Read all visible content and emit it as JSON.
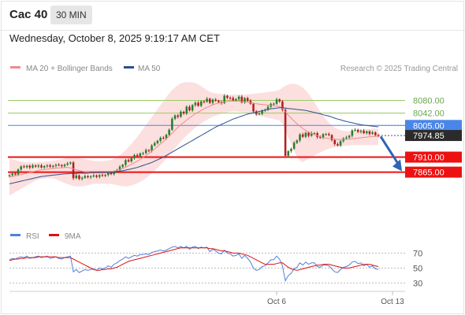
{
  "header": {
    "symbol": "Cac 40",
    "timeframe": "30 MIN",
    "datetime": "Wednesday, October 8, 2025 9:19:17 AM CET"
  },
  "colors": {
    "ma20": "#f08a8a",
    "ma50": "#2c4f8c",
    "bollinger_fill": "#fbd9d9",
    "candle_up": "#2a7d2e",
    "candle_down": "#b31f1f",
    "green_level": "#9ccc65",
    "blue_level": "#4a86e8",
    "red_level": "#ee1111",
    "rsi": "#4f7fdb",
    "rsi_ma": "#dd1111",
    "arrow": "#2f64b5"
  },
  "chart_data": [
    {
      "type": "candlestick",
      "legend": {
        "placement": "top-left",
        "items": [
          "MA 20 + Bollinger Bands",
          "MA 50"
        ]
      },
      "watermark": "Research © 2025 Trading Central",
      "ylim": [
        7720,
        8145
      ],
      "grid": false,
      "x_tick_labels": [
        "Oct 6",
        "Oct 13"
      ],
      "last_price": {
        "value": 7974.85,
        "label": "7974.85"
      },
      "levels": [
        {
          "value": 8080.0,
          "label": "8080.00",
          "kind": "resistance",
          "color": "#9ccc65"
        },
        {
          "value": 8042.0,
          "label": "8042.00",
          "kind": "resistance",
          "color": "#9ccc65"
        },
        {
          "value": 8005.0,
          "label": "8005.00",
          "kind": "pivot",
          "color": "#4a86e8"
        },
        {
          "value": 7910.0,
          "label": "7910.00",
          "kind": "support",
          "color": "#ee1111"
        },
        {
          "value": 7865.0,
          "label": "7865.00",
          "kind": "support",
          "color": "#ee1111"
        }
      ],
      "forecast_arrow": {
        "from": 7972,
        "to": 7868,
        "direction": "down"
      },
      "close": [
        7856,
        7861,
        7858,
        7873,
        7882,
        7880,
        7884,
        7879,
        7885,
        7882,
        7885,
        7879,
        7883,
        7885,
        7881,
        7884,
        7887,
        7886,
        7883,
        7887,
        7891,
        7894,
        7847,
        7855,
        7845,
        7848,
        7853,
        7850,
        7852,
        7855,
        7851,
        7856,
        7854,
        7857,
        7863,
        7859,
        7867,
        7871,
        7881,
        7887,
        7901,
        7897,
        7907,
        7916,
        7913,
        7921,
        7922,
        7931,
        7929,
        7945,
        7952,
        7959,
        7968,
        7966,
        7977,
        7992,
        8025,
        8035,
        8031,
        8046,
        8041,
        8061,
        8050,
        8066,
        8073,
        8064,
        8077,
        8076,
        8085,
        8073,
        8082,
        8079,
        8075,
        8072,
        8094,
        8088,
        8087,
        8080,
        8084,
        8091,
        8074,
        8087,
        8079,
        8070,
        8047,
        8039,
        8040,
        8050,
        8052,
        8061,
        8070,
        8070,
        8083,
        8077,
        8052,
        7914,
        7928,
        7935,
        7953,
        7960,
        7978,
        7971,
        7983,
        7974,
        7982,
        7982,
        7970,
        7968,
        7979,
        7979,
        7976,
        7961,
        7949,
        7945,
        7958,
        7966,
        7969,
        7974,
        7990,
        7992,
        7986,
        7989,
        7982,
        7987,
        7980,
        7984,
        7976,
        7974.85
      ],
      "ma20": [
        7850,
        7852,
        7854,
        7856,
        7858,
        7860,
        7862,
        7864,
        7866,
        7868,
        7870,
        7872,
        7873,
        7874,
        7875,
        7876,
        7877,
        7878,
        7878,
        7879,
        7879,
        7878,
        7875,
        7872,
        7870,
        7868,
        7866,
        7865,
        7864,
        7864,
        7864,
        7864,
        7864,
        7864,
        7865,
        7866,
        7868,
        7870,
        7873,
        7876,
        7880,
        7884,
        7888,
        7893,
        7898,
        7903,
        7909,
        7915,
        7921,
        7928,
        7935,
        7942,
        7950,
        7957,
        7965,
        7973,
        7982,
        7991,
        7999,
        8007,
        8014,
        8021,
        8028,
        8034,
        8040,
        8045,
        8050,
        8055,
        8059,
        8063,
        8067,
        8070,
        8072,
        8074,
        8076,
        8077,
        8078,
        8078,
        8078,
        8078,
        8077,
        8076,
        8075,
        8074,
        8072,
        8070,
        8069,
        8068,
        8067,
        8066,
        8065,
        8064,
        8063,
        8062,
        8056,
        8046,
        8036,
        8027,
        8018,
        8010,
        8003,
        7996,
        7990,
        7985,
        7981,
        7977,
        7974,
        7971,
        7969,
        7967,
        7966,
        7965,
        7964,
        7963,
        7963,
        7963,
        7963,
        7964,
        7965,
        7966,
        7967,
        7968,
        7969,
        7970,
        7971,
        7972,
        7972,
        7973
      ],
      "bb_upper": [
        7905,
        7903,
        7901,
        7899,
        7897,
        7896,
        7895,
        7894,
        7894,
        7894,
        7894,
        7895,
        7896,
        7897,
        7898,
        7899,
        7900,
        7902,
        7904,
        7906,
        7908,
        7910,
        7912,
        7910,
        7908,
        7906,
        7904,
        7902,
        7900,
        7899,
        7898,
        7898,
        7898,
        7899,
        7900,
        7902,
        7905,
        7910,
        7916,
        7923,
        7931,
        7940,
        7950,
        7960,
        7971,
        7982,
        7994,
        8006,
        8018,
        8030,
        8042,
        8054,
        8066,
        8078,
        8090,
        8101,
        8111,
        8119,
        8126,
        8131,
        8134,
        8135,
        8135,
        8134,
        8132,
        8128,
        8123,
        8117,
        8111,
        8106,
        8103,
        8101,
        8100,
        8099,
        8098,
        8097,
        8097,
        8097,
        8097,
        8097,
        8097,
        8097,
        8098,
        8099,
        8100,
        8101,
        8102,
        8103,
        8104,
        8105,
        8106,
        8107,
        8109,
        8112,
        8118,
        8124,
        8128,
        8130,
        8130,
        8128,
        8124,
        8118,
        8110,
        8100,
        8088,
        8075,
        8060,
        8046,
        8034,
        8023,
        8013,
        8005,
        7999,
        7994,
        7991,
        7989,
        7988,
        7988,
        7989,
        7990,
        7991,
        7992,
        7993,
        7994,
        7994,
        7995,
        7995,
        7995
      ],
      "bb_lower": [
        7795,
        7800,
        7805,
        7810,
        7815,
        7820,
        7825,
        7830,
        7835,
        7840,
        7843,
        7845,
        7846,
        7847,
        7847,
        7846,
        7844,
        7840,
        7836,
        7832,
        7829,
        7826,
        7823,
        7822,
        7822,
        7823,
        7824,
        7826,
        7828,
        7830,
        7830,
        7830,
        7830,
        7830,
        7830,
        7829,
        7828,
        7826,
        7824,
        7823,
        7822,
        7823,
        7825,
        7828,
        7832,
        7836,
        7841,
        7847,
        7854,
        7862,
        7870,
        7878,
        7887,
        7896,
        7906,
        7916,
        7927,
        7937,
        7947,
        7957,
        7966,
        7975,
        7983,
        7991,
        7998,
        8005,
        8011,
        8017,
        8022,
        8027,
        8031,
        8034,
        8037,
        8040,
        8042,
        8044,
        8046,
        8047,
        8047,
        8046,
        8045,
        8044,
        8042,
        8040,
        8038,
        8036,
        8034,
        8032,
        8030,
        8028,
        8026,
        8024,
        8022,
        8020,
        8010,
        7990,
        7970,
        7950,
        7930,
        7912,
        7900,
        7895,
        7900,
        7905,
        7910,
        7915,
        7920,
        7924,
        7928,
        7932,
        7935,
        7938,
        7940,
        7941,
        7942,
        7943,
        7944,
        7945,
        7946,
        7946,
        7946,
        7946,
        7946,
        7946,
        7946,
        7946,
        7946,
        7946
      ],
      "ma50": [
        7830,
        7832,
        7834,
        7836,
        7838,
        7840,
        7842,
        7844,
        7846,
        7848,
        7850,
        7852,
        7853,
        7854,
        7855,
        7856,
        7857,
        7858,
        7859,
        7860,
        7860,
        7861,
        7861,
        7861,
        7862,
        7862,
        7862,
        7862,
        7863,
        7863,
        7863,
        7864,
        7864,
        7864,
        7865,
        7865,
        7866,
        7867,
        7868,
        7869,
        7871,
        7873,
        7875,
        7877,
        7879,
        7882,
        7885,
        7888,
        7891,
        7894,
        7898,
        7902,
        7906,
        7910,
        7915,
        7920,
        7925,
        7930,
        7935,
        7940,
        7945,
        7950,
        7955,
        7960,
        7965,
        7970,
        7975,
        7980,
        7985,
        7990,
        7995,
        8000,
        8004,
        8008,
        8012,
        8016,
        8020,
        8024,
        8027,
        8030,
        8033,
        8036,
        8039,
        8041,
        8043,
        8045,
        8047,
        8049,
        8051,
        8053,
        8055,
        8056,
        8057,
        8058,
        8058,
        8057,
        8056,
        8055,
        8054,
        8053,
        8052,
        8051,
        8050,
        8048,
        8046,
        8044,
        8042,
        8040,
        8037,
        8035,
        8033,
        8030,
        8027,
        8024,
        8022,
        8019,
        8017,
        8015,
        8013,
        8011,
        8009,
        8007,
        8006,
        8005,
        8004,
        8003,
        8002,
        8001
      ]
    },
    {
      "type": "line",
      "legend": {
        "placement": "top-left",
        "items": [
          "RSI",
          "9MA"
        ]
      },
      "ylim": [
        22,
        82
      ],
      "y_tick_labels": [
        "70",
        "50",
        "30"
      ],
      "reference_lines": [
        70,
        50,
        30
      ],
      "series": [
        {
          "name": "RSI",
          "values": [
            61,
            63,
            62,
            64,
            65,
            64,
            66,
            63,
            64,
            65,
            66,
            64,
            65,
            66,
            63,
            64,
            65,
            63,
            62,
            64,
            65,
            66,
            45,
            48,
            44,
            46,
            48,
            47,
            48,
            49,
            47,
            50,
            49,
            50,
            53,
            51,
            55,
            57,
            60,
            62,
            65,
            63,
            65,
            67,
            66,
            68,
            68,
            69,
            68,
            71,
            72,
            73,
            74,
            73,
            74,
            76,
            78,
            79,
            77,
            79,
            77,
            79,
            75,
            78,
            79,
            76,
            78,
            77,
            78,
            72,
            75,
            73,
            70,
            69,
            74,
            70,
            69,
            66,
            67,
            69,
            63,
            67,
            63,
            58,
            50,
            47,
            48,
            52,
            53,
            57,
            61,
            61,
            66,
            62,
            53,
            33,
            40,
            43,
            49,
            51,
            57,
            54,
            58,
            55,
            57,
            57,
            52,
            51,
            54,
            54,
            53,
            49,
            45,
            44,
            48,
            51,
            52,
            54,
            58,
            59,
            56,
            57,
            53,
            55,
            51,
            53,
            49,
            48
          ]
        },
        {
          "name": "9MA",
          "values": [
            60,
            61,
            62,
            62,
            63,
            63,
            64,
            64,
            64,
            64,
            65,
            65,
            65,
            65,
            65,
            65,
            65,
            64,
            64,
            64,
            64,
            64,
            62,
            60,
            58,
            56,
            54,
            52,
            50,
            48,
            47,
            47,
            48,
            48,
            49,
            49,
            50,
            51,
            53,
            55,
            57,
            59,
            60,
            61,
            62,
            63,
            64,
            65,
            66,
            67,
            68,
            69,
            70,
            71,
            72,
            73,
            74,
            75,
            76,
            77,
            77,
            77,
            77,
            77,
            77,
            77,
            77,
            77,
            77,
            76,
            76,
            75,
            74,
            73,
            73,
            72,
            71,
            70,
            70,
            70,
            69,
            68,
            67,
            65,
            63,
            61,
            59,
            57,
            55,
            55,
            55,
            55,
            56,
            57,
            57,
            54,
            51,
            49,
            48,
            47,
            48,
            49,
            50,
            51,
            52,
            53,
            54,
            54,
            55,
            55,
            55,
            54,
            53,
            52,
            51,
            50,
            50,
            50,
            51,
            52,
            53,
            54,
            55,
            55,
            55,
            54,
            53,
            52
          ]
        }
      ]
    }
  ]
}
